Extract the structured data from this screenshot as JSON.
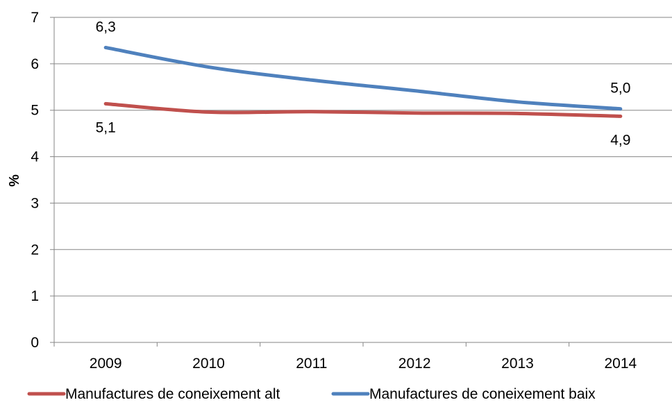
{
  "chart_data": {
    "type": "line",
    "categories": [
      "2009",
      "2010",
      "2011",
      "2012",
      "2013",
      "2014"
    ],
    "ylabel": "%",
    "ylim": [
      0,
      7
    ],
    "yticks": [
      "0",
      "1",
      "2",
      "3",
      "4",
      "5",
      "6",
      "7"
    ],
    "grid": true,
    "legend_position": "bottom",
    "series": [
      {
        "name": "Manufactures de coneixement alt",
        "color": "#c0504d",
        "values": [
          5.14,
          4.96,
          4.97,
          4.94,
          4.93,
          4.87
        ],
        "labels": [
          {
            "index": 0,
            "text": "5,1",
            "position": "below"
          },
          {
            "index": 5,
            "text": "4,9",
            "position": "below"
          }
        ]
      },
      {
        "name": "Manufactures de coneixement baix",
        "color": "#4f81bd",
        "values": [
          6.35,
          5.93,
          5.65,
          5.42,
          5.18,
          5.03
        ],
        "labels": [
          {
            "index": 0,
            "text": "6,3",
            "position": "above"
          },
          {
            "index": 5,
            "text": "5,0",
            "position": "above"
          }
        ]
      }
    ]
  }
}
